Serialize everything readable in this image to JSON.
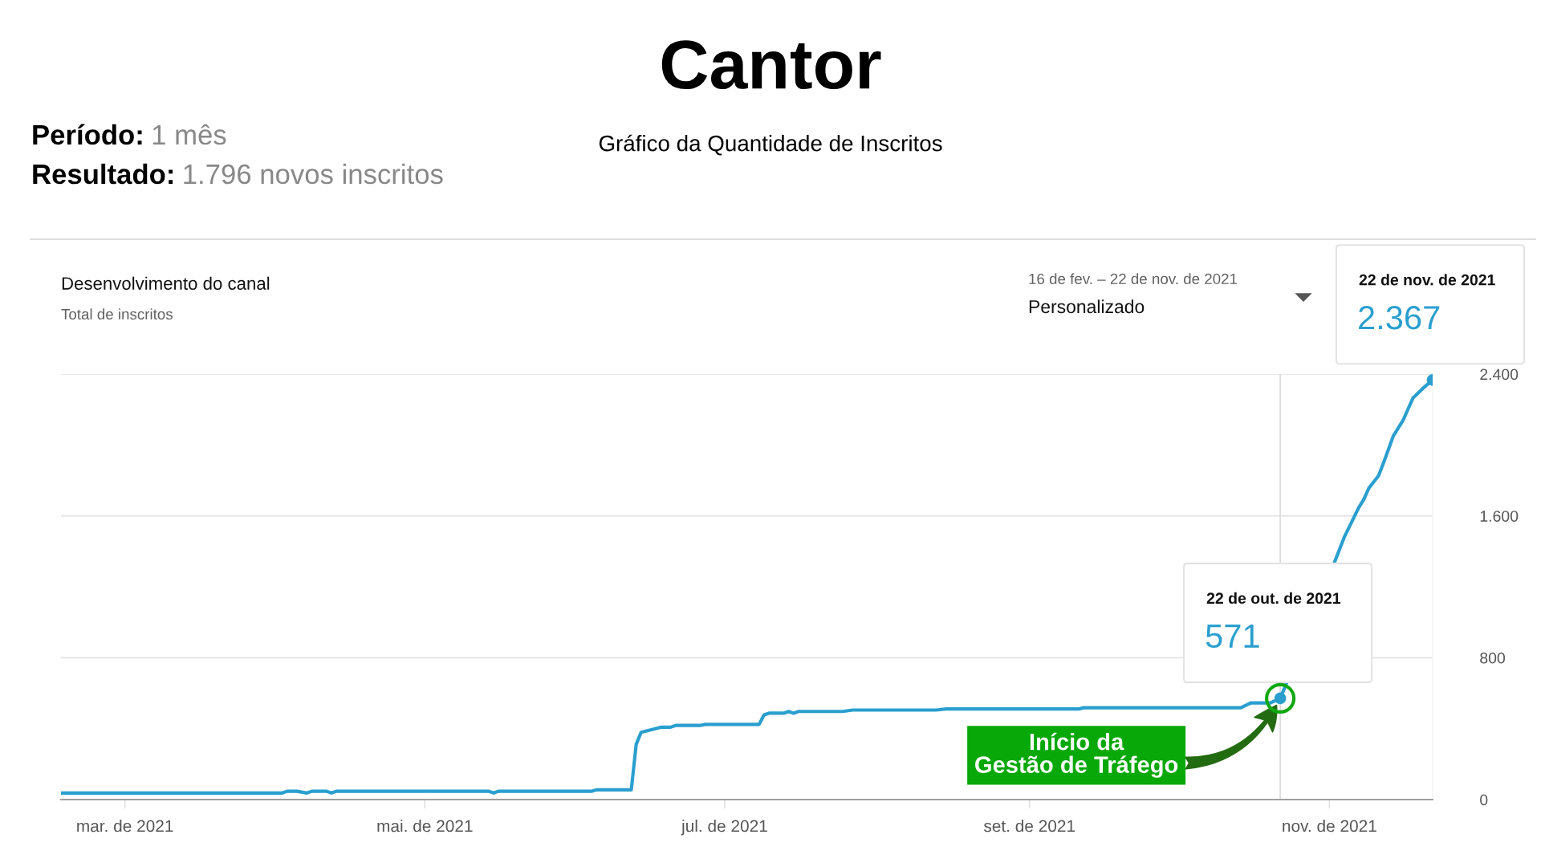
{
  "chart_data": {
    "type": "line",
    "title": "Cantor",
    "subtitle": "Gráfico da Quantidade de Inscritos",
    "x": [
      "2021-02-16",
      "2021-04-02",
      "2021-04-03",
      "2021-04-05",
      "2021-04-07",
      "2021-04-08",
      "2021-04-11",
      "2021-04-12",
      "2021-04-13",
      "2021-05-14",
      "2021-05-15",
      "2021-05-16",
      "2021-06-04",
      "2021-06-05",
      "2021-06-12",
      "2021-06-13",
      "2021-06-14",
      "2021-06-18",
      "2021-06-20",
      "2021-06-21",
      "2021-06-26",
      "2021-06-27",
      "2021-07-08",
      "2021-07-09",
      "2021-07-10",
      "2021-07-13",
      "2021-07-14",
      "2021-07-15",
      "2021-07-16",
      "2021-07-25",
      "2021-07-27",
      "2021-08-13",
      "2021-08-15",
      "2021-09-11",
      "2021-09-12",
      "2021-10-14",
      "2021-10-16",
      "2021-10-20",
      "2021-10-22",
      "2021-10-23",
      "2021-11-02",
      "2021-11-04",
      "2021-11-07",
      "2021-11-08",
      "2021-11-09",
      "2021-11-11",
      "2021-11-12",
      "2021-11-14",
      "2021-11-16",
      "2021-11-17",
      "2021-11-18",
      "2021-11-20",
      "2021-11-22"
    ],
    "series": [
      {
        "color": "#2a9fcf",
        "values": [
          37,
          37,
          47,
          47,
          37,
          47,
          47,
          37,
          47,
          47,
          37,
          47,
          47,
          55,
          55,
          312,
          379,
          408,
          408,
          418,
          418,
          424,
          424,
          478,
          487,
          487,
          497,
          487,
          497,
          497,
          505,
          505,
          511,
          511,
          518,
          518,
          545,
          545,
          571,
          638,
          1336,
          1479,
          1649,
          1693,
          1756,
          1827,
          1899,
          2051,
          2140,
          2203,
          2265,
          2319,
          2367
        ]
      },
      {
        "type": "scatter",
        "marker": "circle",
        "color": "#2a9fcf",
        "x": [
          "2021-10-22",
          "2021-11-22"
        ],
        "values": [
          571,
          2367
        ]
      }
    ],
    "xlim": [
      "2021-02-16",
      "2021-11-22"
    ],
    "xticks": [
      {
        "value": "2021-03-01",
        "label": "mar. de 2021"
      },
      {
        "value": "2021-05-01",
        "label": "mai. de 2021"
      },
      {
        "value": "2021-07-01",
        "label": "jul. de 2021"
      },
      {
        "value": "2021-09-01",
        "label": "set. de 2021"
      },
      {
        "value": "2021-11-01",
        "label": "nov. de 2021"
      }
    ],
    "ylim": [
      0,
      2400
    ],
    "yticks": [
      0,
      800,
      {
        "value": 1600,
        "label": "1.600"
      },
      {
        "value": 2400,
        "label": "2.400"
      }
    ],
    "grid": "y",
    "legend": false,
    "marker": "none",
    "line_style": "solid",
    "ref_lines": [
      {
        "axis": "x",
        "value": "2021-10-22",
        "color": "#dadada"
      }
    ],
    "annotations": [
      "Período:",
      "1 mês",
      "Resultado:",
      "1.796 novos inscritos",
      "Desenvolvimento do canal",
      "Total de inscritos",
      "16 de fev. – 22 de nov. de 2021",
      "Personalizado",
      "22 de nov. de 2021",
      {
        "text": "2.367",
        "x": "2021-11-22",
        "y": 2367
      },
      "22 de out. de 2021",
      {
        "text": "571",
        "x": "2021-10-22",
        "y": 571
      },
      "Início da\nGestão de Tráfego"
    ]
  }
}
